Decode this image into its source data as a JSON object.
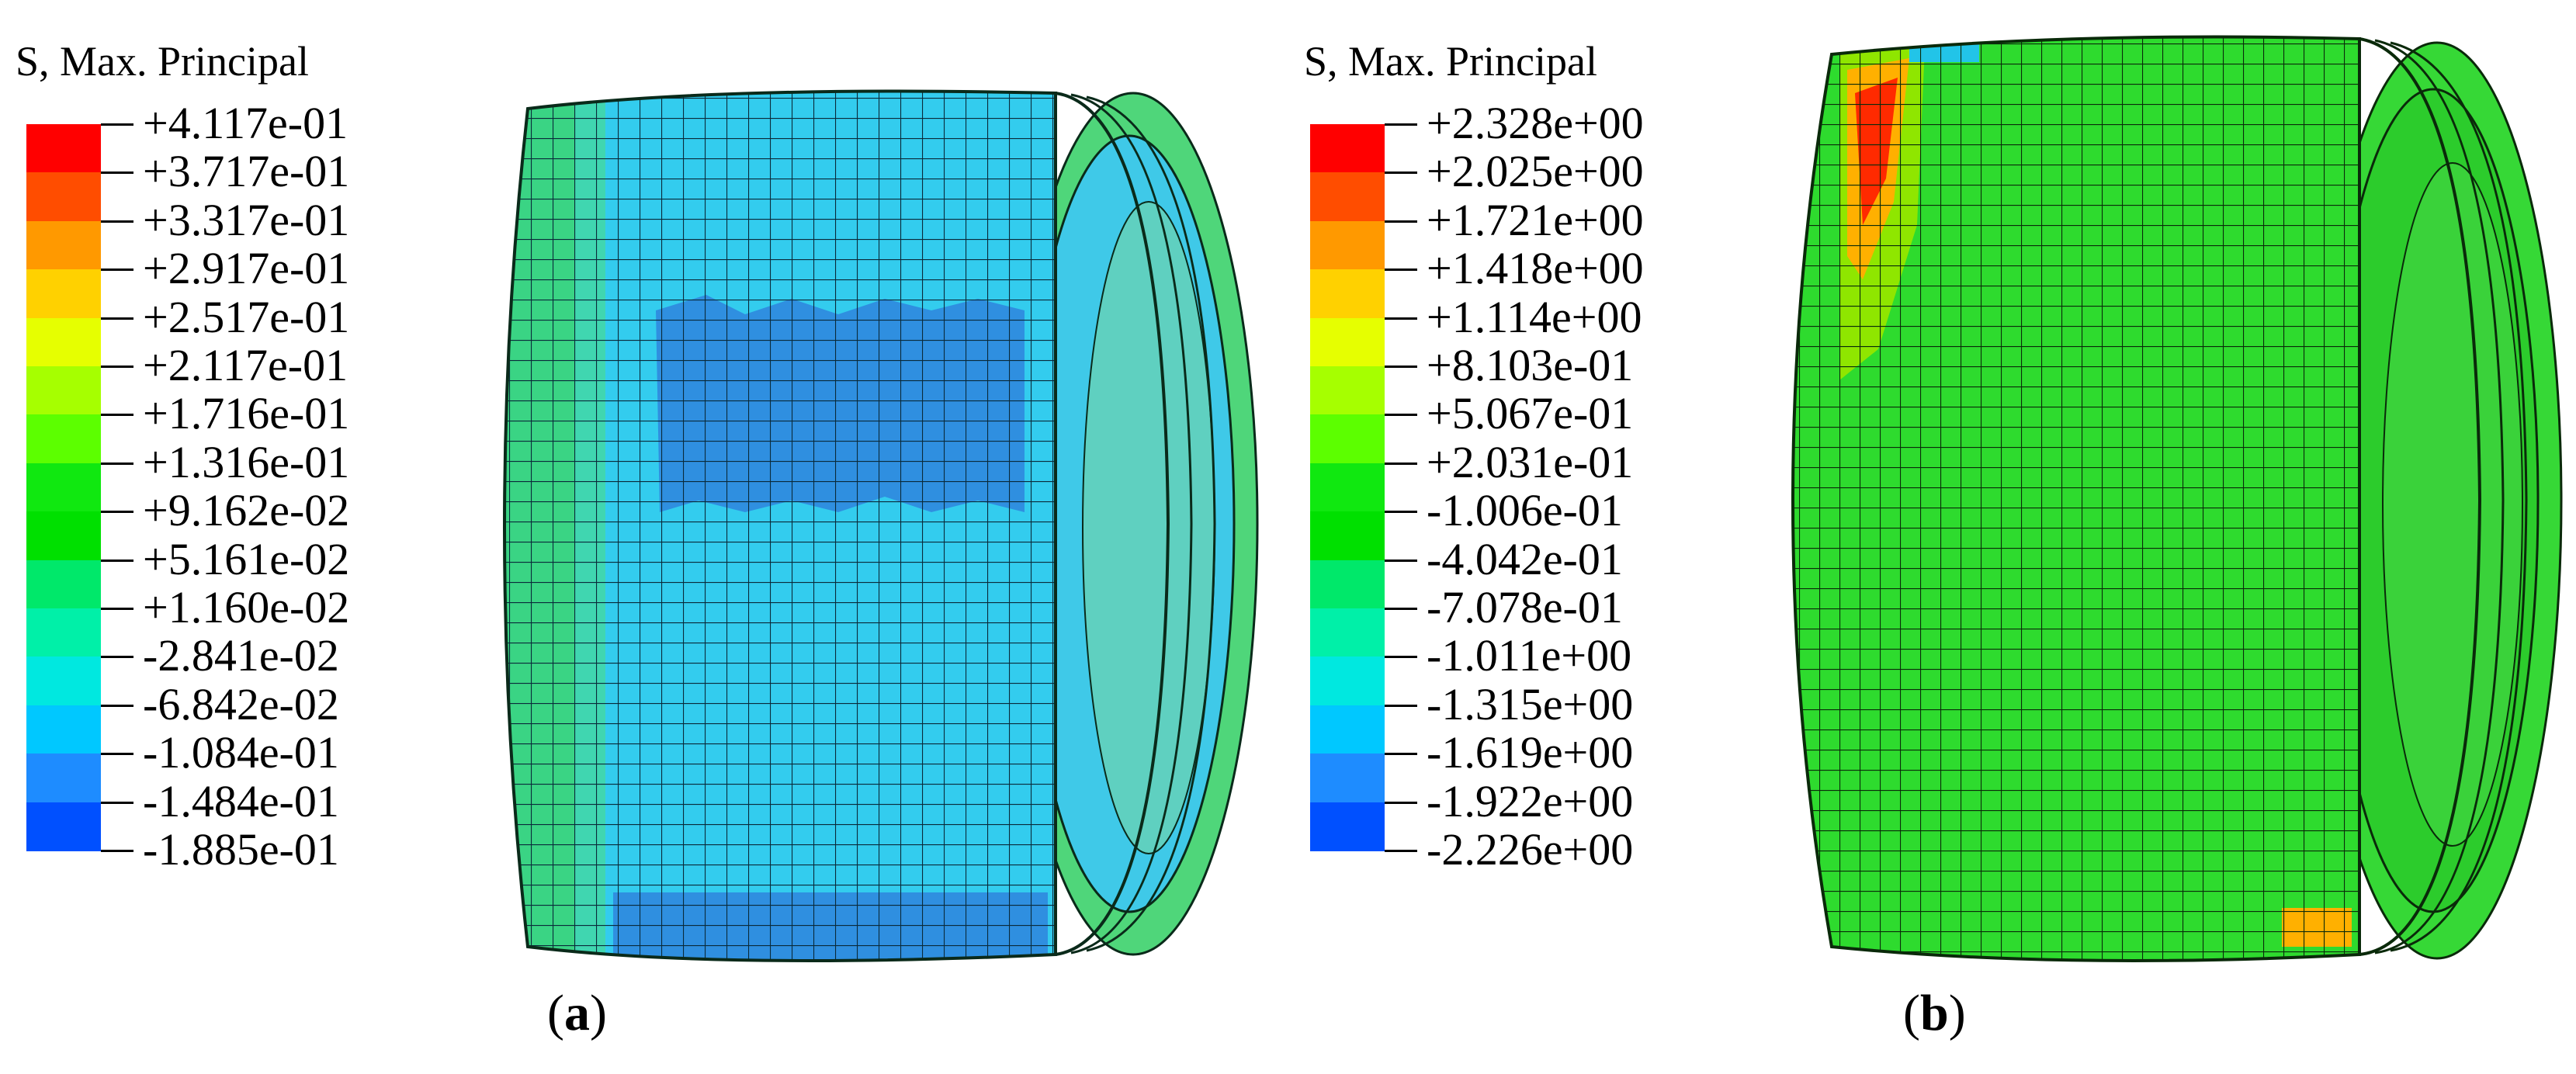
{
  "panels": [
    {
      "id": "a",
      "legend_title": "S, Max. Principal",
      "legend_values": [
        "+4.117e-01",
        "+3.717e-01",
        "+3.317e-01",
        "+2.917e-01",
        "+2.517e-01",
        "+2.117e-01",
        "+1.716e-01",
        "+1.316e-01",
        "+9.162e-02",
        "+5.161e-02",
        "+1.160e-02",
        "-2.841e-02",
        "-6.842e-02",
        "-1.084e-01",
        "-1.484e-01",
        "-1.885e-01"
      ],
      "caption_open": "(",
      "caption_letter": "a",
      "caption_close": ")"
    },
    {
      "id": "b",
      "legend_title": "S, Max. Principal",
      "legend_values": [
        "+2.328e+00",
        "+2.025e+00",
        "+1.721e+00",
        "+1.418e+00",
        "+1.114e+00",
        "+8.103e-01",
        "+5.067e-01",
        "+2.031e-01",
        "-1.006e-01",
        "-4.042e-01",
        "-7.078e-01",
        "-1.011e+00",
        "-1.315e+00",
        "-1.619e+00",
        "-1.922e+00",
        "-2.226e+00"
      ],
      "caption_open": "(",
      "caption_letter": "b",
      "caption_close": ")"
    }
  ],
  "colors": {
    "contour_bands_top_to_bottom": [
      "#ff0000",
      "#ff4d00",
      "#ff9900",
      "#ffd100",
      "#e6ff00",
      "#a6ff00",
      "#5cff00",
      "#10e810",
      "#00e000",
      "#00e86a",
      "#00f0a8",
      "#00e8e0",
      "#00c8ff",
      "#1e8cff",
      "#0050ff",
      "#0000ff"
    ],
    "panel_a_body": "#33ccee",
    "panel_a_patch": "#2f8fe0",
    "panel_b_body": "#2edb2e",
    "mesh_line": "#0a2a1a"
  }
}
